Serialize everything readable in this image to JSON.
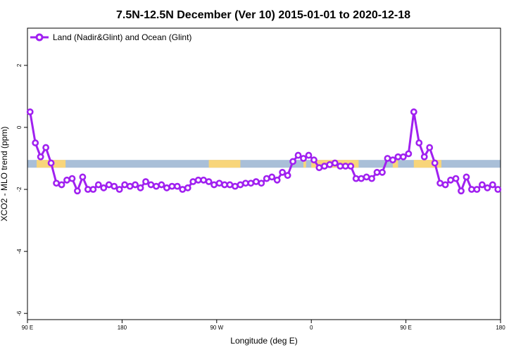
{
  "chart_data": {
    "type": "line",
    "title": "7.5N-12.5N December (Ver 10)   2015-01-01 to 2020-12-18",
    "xlabel": "Longitude (deg E)",
    "ylabel": "XCO2 - MLO trend (ppm)",
    "xlim": [
      90,
      450
    ],
    "ylim": [
      -6.2,
      3.2
    ],
    "x_ticks": [
      {
        "value": 90,
        "label": "90 E"
      },
      {
        "value": 162,
        "label": "180"
      },
      {
        "value": 234,
        "label": "90 W"
      },
      {
        "value": 306,
        "label": "0"
      },
      {
        "value": 378,
        "label": "90 E"
      },
      {
        "value": 450,
        "label": "180"
      }
    ],
    "y_ticks": [
      {
        "value": 2,
        "label": "2"
      },
      {
        "value": 0,
        "label": "0"
      },
      {
        "value": -2,
        "label": "-2"
      },
      {
        "value": -4,
        "label": "-4"
      },
      {
        "value": -6,
        "label": "-6"
      }
    ],
    "land_band": {
      "y_min": -1.3,
      "y_max": -1.05
    },
    "land_segments": [
      [
        97,
        119
      ],
      [
        228,
        252
      ],
      [
        300,
        302
      ],
      [
        306,
        342
      ],
      [
        368,
        372
      ],
      [
        384,
        405
      ]
    ],
    "series": [
      {
        "name": "Land (Nadir&Glint) and Ocean (Glint)",
        "color": "#a020f0",
        "x": [
          92,
          96,
          100,
          104,
          108,
          112,
          116,
          120,
          124,
          128,
          132,
          136,
          140,
          144,
          148,
          152,
          156,
          160,
          164,
          168,
          172,
          176,
          180,
          184,
          188,
          192,
          196,
          200,
          204,
          208,
          212,
          216,
          220,
          224,
          228,
          232,
          236,
          240,
          244,
          248,
          252,
          256,
          260,
          264,
          268,
          272,
          276,
          280,
          284,
          288,
          292,
          296,
          300,
          304,
          308,
          312,
          316,
          320,
          324,
          328,
          332,
          336,
          340,
          344,
          348,
          352,
          356,
          360,
          364,
          368,
          372,
          376,
          380,
          384,
          388,
          392,
          396,
          400,
          404,
          408,
          412,
          416,
          420,
          424,
          428,
          432,
          436,
          440,
          444,
          448
        ],
        "values": [
          0.5,
          -0.5,
          -0.95,
          -0.65,
          -1.15,
          -1.8,
          -1.85,
          -1.7,
          -1.65,
          -2.05,
          -1.6,
          -2.0,
          -2.0,
          -1.85,
          -1.95,
          -1.85,
          -1.9,
          -2.0,
          -1.85,
          -1.9,
          -1.85,
          -1.95,
          -1.75,
          -1.85,
          -1.9,
          -1.85,
          -1.95,
          -1.9,
          -1.9,
          -2.0,
          -1.95,
          -1.75,
          -1.7,
          -1.7,
          -1.75,
          -1.85,
          -1.8,
          -1.85,
          -1.85,
          -1.9,
          -1.85,
          -1.8,
          -1.8,
          -1.75,
          -1.8,
          -1.65,
          -1.6,
          -1.7,
          -1.45,
          -1.55,
          -1.1,
          -0.9,
          -1.0,
          -0.9,
          -1.05,
          -1.3,
          -1.25,
          -1.2,
          -1.15,
          -1.25,
          -1.25,
          -1.25,
          -1.65,
          -1.65,
          -1.6,
          -1.65,
          -1.45,
          -1.45,
          -1.0,
          -1.05,
          -0.95,
          -0.95,
          -0.85,
          0.5,
          -0.5,
          -0.95,
          -0.65,
          -1.15,
          -1.8,
          -1.85,
          -1.7,
          -1.65,
          -2.05,
          -1.6,
          -2.0,
          -2.0,
          -1.85,
          -1.95,
          -1.85,
          -2.0
        ]
      }
    ],
    "legend": {
      "position": "top-left"
    }
  }
}
